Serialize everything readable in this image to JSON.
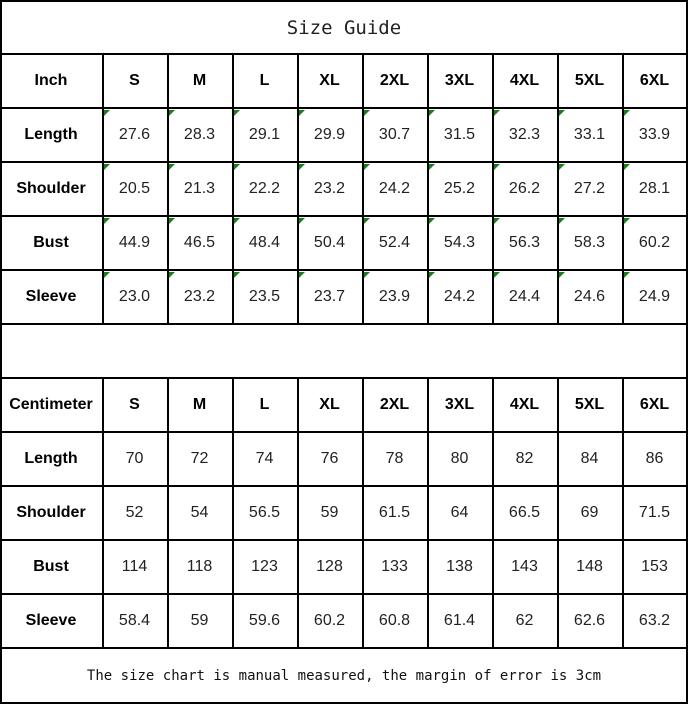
{
  "title": "Size Guide",
  "sizes": [
    "S",
    "M",
    "L",
    "XL",
    "2XL",
    "3XL",
    "4XL",
    "5XL",
    "6XL"
  ],
  "inch_table": {
    "unit_label": "Inch",
    "rows": [
      {
        "label": "Length",
        "values": [
          "27.6",
          "28.3",
          "29.1",
          "29.9",
          "30.7",
          "31.5",
          "32.3",
          "33.1",
          "33.9"
        ]
      },
      {
        "label": "Shoulder",
        "values": [
          "20.5",
          "21.3",
          "22.2",
          "23.2",
          "24.2",
          "25.2",
          "26.2",
          "27.2",
          "28.1"
        ]
      },
      {
        "label": "Bust",
        "values": [
          "44.9",
          "46.5",
          "48.4",
          "50.4",
          "52.4",
          "54.3",
          "56.3",
          "58.3",
          "60.2"
        ]
      },
      {
        "label": "Sleeve",
        "values": [
          "23.0",
          "23.2",
          "23.5",
          "23.7",
          "23.9",
          "24.2",
          "24.4",
          "24.6",
          "24.9"
        ]
      }
    ]
  },
  "cm_table": {
    "unit_label": "Centimeter",
    "rows": [
      {
        "label": "Length",
        "values": [
          "70",
          "72",
          "74",
          "76",
          "78",
          "80",
          "82",
          "84",
          "86"
        ]
      },
      {
        "label": "Shoulder",
        "values": [
          "52",
          "54",
          "56.5",
          "59",
          "61.5",
          "64",
          "66.5",
          "69",
          "71.5"
        ]
      },
      {
        "label": "Bust",
        "values": [
          "114",
          "118",
          "123",
          "128",
          "133",
          "138",
          "143",
          "148",
          "153"
        ]
      },
      {
        "label": "Sleeve",
        "values": [
          "58.4",
          "59",
          "59.6",
          "60.2",
          "60.8",
          "61.4",
          "62",
          "62.6",
          "63.2"
        ]
      }
    ]
  },
  "footer_note": "The size chart is manual measured, the margin of error is 3cm",
  "colors": {
    "grid": "#000000",
    "cell_marker": "#1a7f1a"
  }
}
